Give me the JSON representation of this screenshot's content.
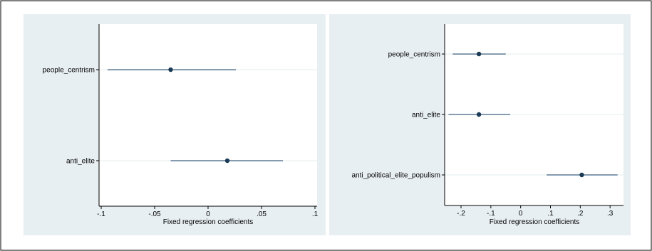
{
  "colors": {
    "panel_bg": "#e8eff2",
    "plot_bg": "#ffffff",
    "marker": "#1a3a55",
    "ci_line": "#3b5f80",
    "gridline": "#e6ecef",
    "axis": "#000000"
  },
  "chart_data": [
    {
      "type": "scatter",
      "style": "coefficient plot with confidence intervals",
      "xlabel": "Fixed regression coefficients",
      "xlim": [
        -0.102,
        0.102
      ],
      "xticks": [
        -0.1,
        -0.05,
        0,
        0.05,
        0.1
      ],
      "xtick_labels": [
        "-.1",
        "-.05",
        "0",
        ".05",
        ".1"
      ],
      "categories": [
        "people_centrism",
        "anti_elite"
      ],
      "estimates": [
        -0.035,
        0.018
      ],
      "ci_low": [
        -0.094,
        -0.035
      ],
      "ci_high": [
        0.026,
        0.07
      ],
      "grid": true,
      "legend": "none"
    },
    {
      "type": "scatter",
      "style": "coefficient plot with confidence intervals",
      "xlabel": "Fixed regression coefficients",
      "xlim": [
        -0.255,
        0.345
      ],
      "xticks": [
        -0.2,
        -0.1,
        0,
        0.1,
        0.2,
        0.3
      ],
      "xtick_labels": [
        "-.2",
        "-.1",
        "0",
        ".1",
        ".2",
        ".3"
      ],
      "categories": [
        "people_centrism",
        "anti_elite",
        "anti_political_elite_populism"
      ],
      "estimates": [
        -0.14,
        -0.14,
        0.205
      ],
      "ci_low": [
        -0.228,
        -0.242,
        0.087
      ],
      "ci_high": [
        -0.05,
        -0.035,
        0.325
      ],
      "grid": true,
      "legend": "none"
    }
  ]
}
